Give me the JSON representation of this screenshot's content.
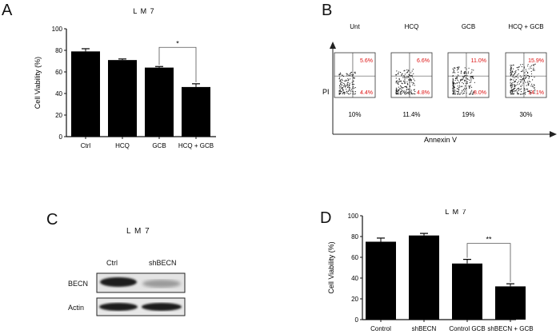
{
  "panels": {
    "A": {
      "letter": "A",
      "chart_data": {
        "type": "bar",
        "title": "L M 7",
        "ylabel": "Cell Viability (%)",
        "categories": [
          "Ctrl",
          "HCQ",
          "GCB",
          "HCQ + GCB"
        ],
        "values": [
          79,
          71,
          64,
          46
        ],
        "errors": [
          2.5,
          1.0,
          1.0,
          3.0
        ],
        "ylim": [
          0,
          100
        ],
        "yticks": [
          "0",
          "20",
          "40",
          "60",
          "80",
          "100"
        ],
        "significance": [
          {
            "from": 2,
            "to": 3,
            "label": "*"
          }
        ]
      }
    },
    "B": {
      "letter": "B",
      "ylabel": "PI",
      "xlabel": "Annexin V",
      "plots": [
        {
          "label": "Unt",
          "ur": "5.6%",
          "lr": "4.4%",
          "total": "10%"
        },
        {
          "label": "HCQ",
          "ur": "6.6%",
          "lr": "4.8%",
          "total": "11.4%"
        },
        {
          "label": "GCB",
          "ur": "11.0%",
          "lr": "8.0%",
          "total": "19%"
        },
        {
          "label": "HCQ + GCB",
          "ur": "15.9%",
          "lr": "14.1%",
          "total": "30%"
        }
      ]
    },
    "C": {
      "letter": "C",
      "title": "L M 7",
      "lanes": [
        "Ctrl",
        "shBECN"
      ],
      "rows": [
        "BECN",
        "Actin"
      ]
    },
    "D": {
      "letter": "D",
      "chart_data": {
        "type": "bar",
        "title": "L M 7",
        "ylabel": "Cell Viability (%)",
        "categories": [
          "Control",
          "shBECN",
          "Control GCB",
          "shBECN + GCB"
        ],
        "values": [
          75,
          81,
          54,
          32
        ],
        "errors": [
          3.5,
          2.0,
          4.0,
          2.5
        ],
        "ylim": [
          0,
          100
        ],
        "yticks": [
          "0",
          "20",
          "40",
          "60",
          "80",
          "100"
        ],
        "significance": [
          {
            "from": 2,
            "to": 3,
            "label": "**"
          }
        ]
      }
    }
  }
}
